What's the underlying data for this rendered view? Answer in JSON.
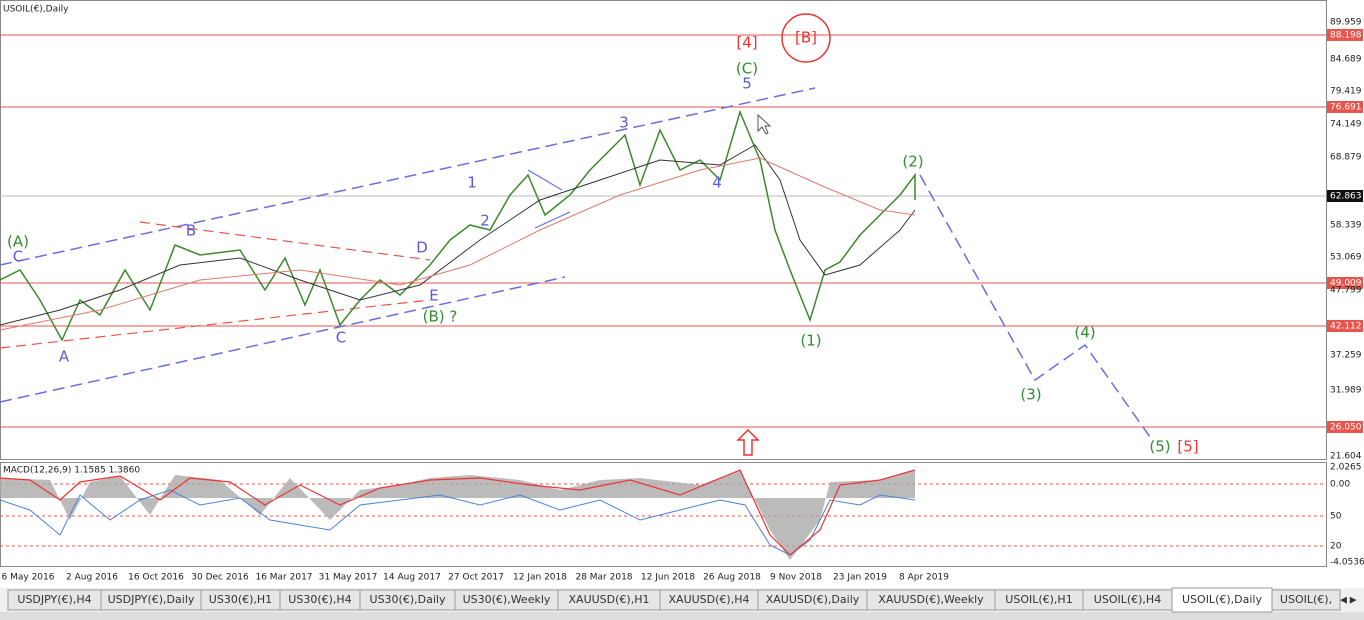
{
  "window": {
    "title": "USOIL(€),Daily",
    "indicator": "MACD(12,26,9) 1.1585 1.3860"
  },
  "price_axis": [
    "89.959",
    "88.198",
    "84.689",
    "79.419",
    "76.691",
    "74.149",
    "68.879",
    "62.863",
    "58.339",
    "53.069",
    "49.009",
    "47.799",
    "42.112",
    "37.259",
    "31.989",
    "26.050",
    "21.604"
  ],
  "macd_axis": [
    "2.0265",
    "0.00",
    "50",
    "20",
    "-4.0536"
  ],
  "dates": [
    "6 May 2016",
    "2 Aug 2016",
    "16 Oct 2016",
    "30 Dec 2016",
    "16 Mar 2017",
    "31 May 2017",
    "14 Aug 2017",
    "27 Oct 2017",
    "12 Jan 2018",
    "28 Mar 2018",
    "12 Jun 2018",
    "26 Aug 2018",
    "9 Nov 2018",
    "23 Jan 2019",
    "8 Apr 2019"
  ],
  "wave_labels": [
    "C",
    "A",
    "B",
    "C",
    "D",
    "E",
    "1",
    "2",
    "3",
    "4",
    "5",
    "(A)",
    "(B) ?",
    "(C)",
    "(1)",
    "(2)",
    "(3)",
    "(4)",
    "(5)",
    "[4]",
    "[B]",
    "[5]"
  ],
  "tabs": [
    "USDJPY(€),H4",
    "USDJPY(€),Daily",
    "US30(€),H1",
    "US30(€),H4",
    "US30(€),Daily",
    "US30(€),Weekly",
    "XAUUSD(€),H1",
    "XAUUSD(€),H4",
    "XAUUSD(€),Daily",
    "XAUUSD(€),Weekly",
    "USOIL(€),H1",
    "USOIL(€),H4",
    "USOIL(€),Daily",
    "USOIL(€),"
  ]
}
